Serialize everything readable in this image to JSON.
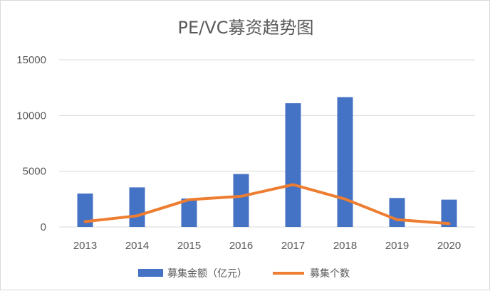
{
  "chart_data": {
    "type": "bar",
    "title": "PE/VC募资趋势图",
    "categories": [
      "2013",
      "2014",
      "2015",
      "2016",
      "2017",
      "2018",
      "2019",
      "2020"
    ],
    "series": [
      {
        "name": "募集金额（亿元）",
        "kind": "bar",
        "color": "#4472C4",
        "values": [
          3000,
          3550,
          2550,
          4750,
          11100,
          11650,
          2600,
          2450
        ]
      },
      {
        "name": "募集个数",
        "kind": "line",
        "color": "#ED7D31",
        "values": [
          480,
          1000,
          2450,
          2750,
          3800,
          2500,
          650,
          300
        ]
      }
    ],
    "ylim": [
      0,
      15000
    ],
    "yticks": [
      "0",
      "5000",
      "10000",
      "15000"
    ],
    "grid": true,
    "legend_position": "bottom"
  }
}
